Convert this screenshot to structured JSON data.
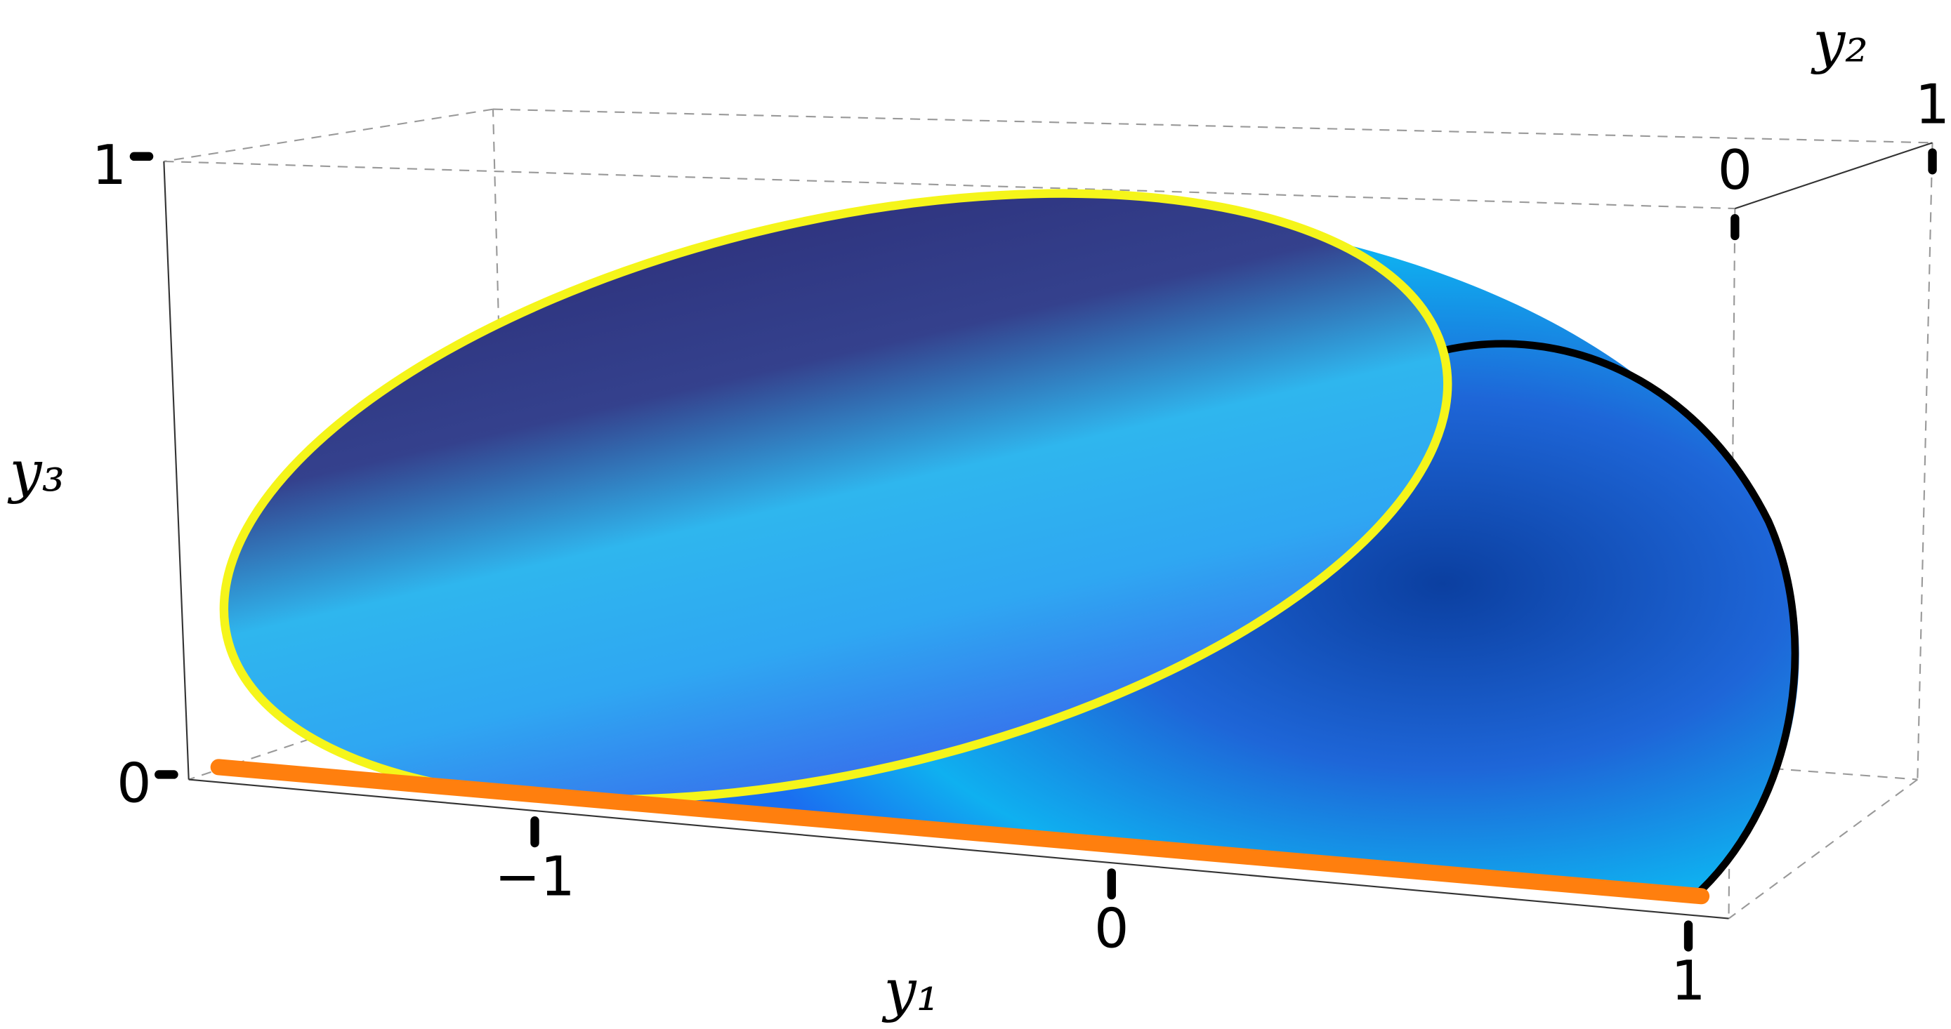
{
  "chart_data": {
    "type": "surface3d",
    "x_label": "y₁",
    "y_label": "y₂",
    "z_label": "y₃",
    "xlim": [
      -1.6,
      1.07
    ],
    "ylim": [
      0,
      1
    ],
    "zlim": [
      0,
      1
    ],
    "xticks": [
      {
        "value": -1,
        "label": "−1"
      },
      0,
      1
    ],
    "yticks": [
      0,
      1
    ],
    "zticks": [
      0,
      1
    ]
  }
}
